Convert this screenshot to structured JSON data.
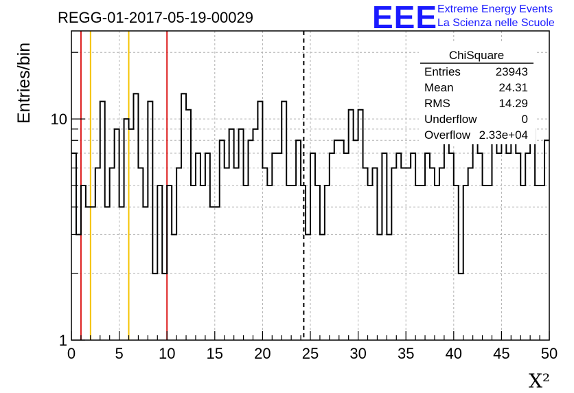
{
  "chart_data": {
    "type": "histogram",
    "title": "REGG-01-2017-05-19-00029",
    "xlabel": "X²",
    "ylabel": "Entries/bin",
    "xlim": [
      0,
      50
    ],
    "ylim": [
      1,
      25
    ],
    "yscale": "log",
    "grid": true,
    "x_ticks": [
      "0",
      "5",
      "10",
      "15",
      "20",
      "25",
      "30",
      "35",
      "40",
      "45",
      "50"
    ],
    "y_ticks": [
      "1",
      "10"
    ],
    "bin_width": 0.5,
    "values": [
      7,
      3,
      5,
      4,
      4,
      6,
      12,
      4,
      6,
      9,
      4,
      10,
      9,
      13,
      6,
      4,
      12,
      2,
      5,
      2,
      5,
      3,
      6,
      13,
      11,
      5,
      7,
      5,
      7,
      4,
      4,
      8,
      6,
      9,
      6,
      9,
      5,
      8,
      9,
      12,
      6,
      5,
      7,
      7,
      12,
      5,
      5,
      8,
      5,
      3,
      7,
      5,
      3,
      5,
      7,
      8,
      8,
      7,
      11,
      8,
      11,
      6,
      5,
      6,
      3,
      7,
      3,
      6,
      7,
      6,
      6,
      7,
      5,
      5,
      7,
      6,
      5,
      6,
      11,
      7,
      5,
      2,
      5,
      6,
      8,
      7,
      5,
      5,
      8,
      7,
      8,
      7,
      8,
      7,
      5,
      7,
      9,
      5,
      5,
      8
    ],
    "vertical_lines": [
      {
        "x": 1,
        "color": "#dd1c1c",
        "style": "solid"
      },
      {
        "x": 2,
        "color": "#f5c200",
        "style": "solid"
      },
      {
        "x": 6,
        "color": "#f5c200",
        "style": "solid"
      },
      {
        "x": 10,
        "color": "#dd1c1c",
        "style": "solid"
      },
      {
        "x": 24.31,
        "color": "#000000",
        "style": "dashed"
      }
    ],
    "stats_box": {
      "name": "ChiSquare",
      "rows": [
        {
          "label": "Entries",
          "value": "23943"
        },
        {
          "label": "Mean",
          "value": "24.31"
        },
        {
          "label": "RMS",
          "value": "14.29"
        },
        {
          "label": "Underflow",
          "value": "0"
        },
        {
          "label": "Overflow",
          "value": "2.33e+04"
        }
      ]
    }
  },
  "logo": {
    "text": "EEE",
    "line1": "Extreme Energy Events",
    "line2": "La Scienza nelle Scuole",
    "color": "#1a1aff"
  }
}
